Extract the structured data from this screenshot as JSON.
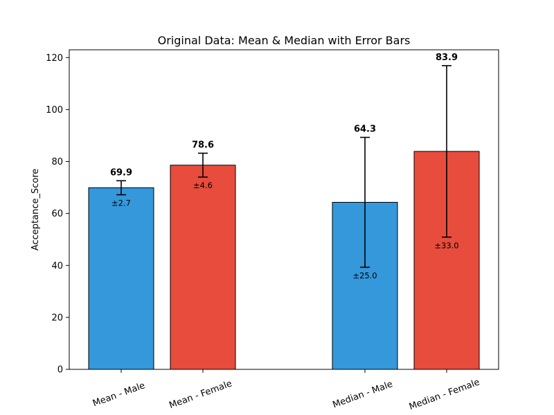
{
  "chart_data": {
    "type": "bar",
    "title": "Original Data: Mean & Median with Error Bars",
    "xlabel": "",
    "ylabel": "Acceptance_Score",
    "ylim": [
      0,
      123
    ],
    "yticks": [
      0,
      20,
      40,
      60,
      80,
      100,
      120
    ],
    "categories": [
      "Mean - Male",
      "Mean - Female",
      "Median - Male",
      "Median - Female"
    ],
    "values": [
      69.9,
      78.6,
      64.3,
      83.9
    ],
    "errors": [
      2.7,
      4.6,
      25.0,
      33.0
    ],
    "value_labels": [
      "69.9",
      "78.6",
      "64.3",
      "83.9"
    ],
    "error_labels": [
      "±2.7",
      "±4.6",
      "±25.0",
      "±33.0"
    ],
    "bar_colors": [
      "#3498db",
      "#e74c3c",
      "#3498db",
      "#e74c3c"
    ],
    "grid": false,
    "legend": "none"
  }
}
